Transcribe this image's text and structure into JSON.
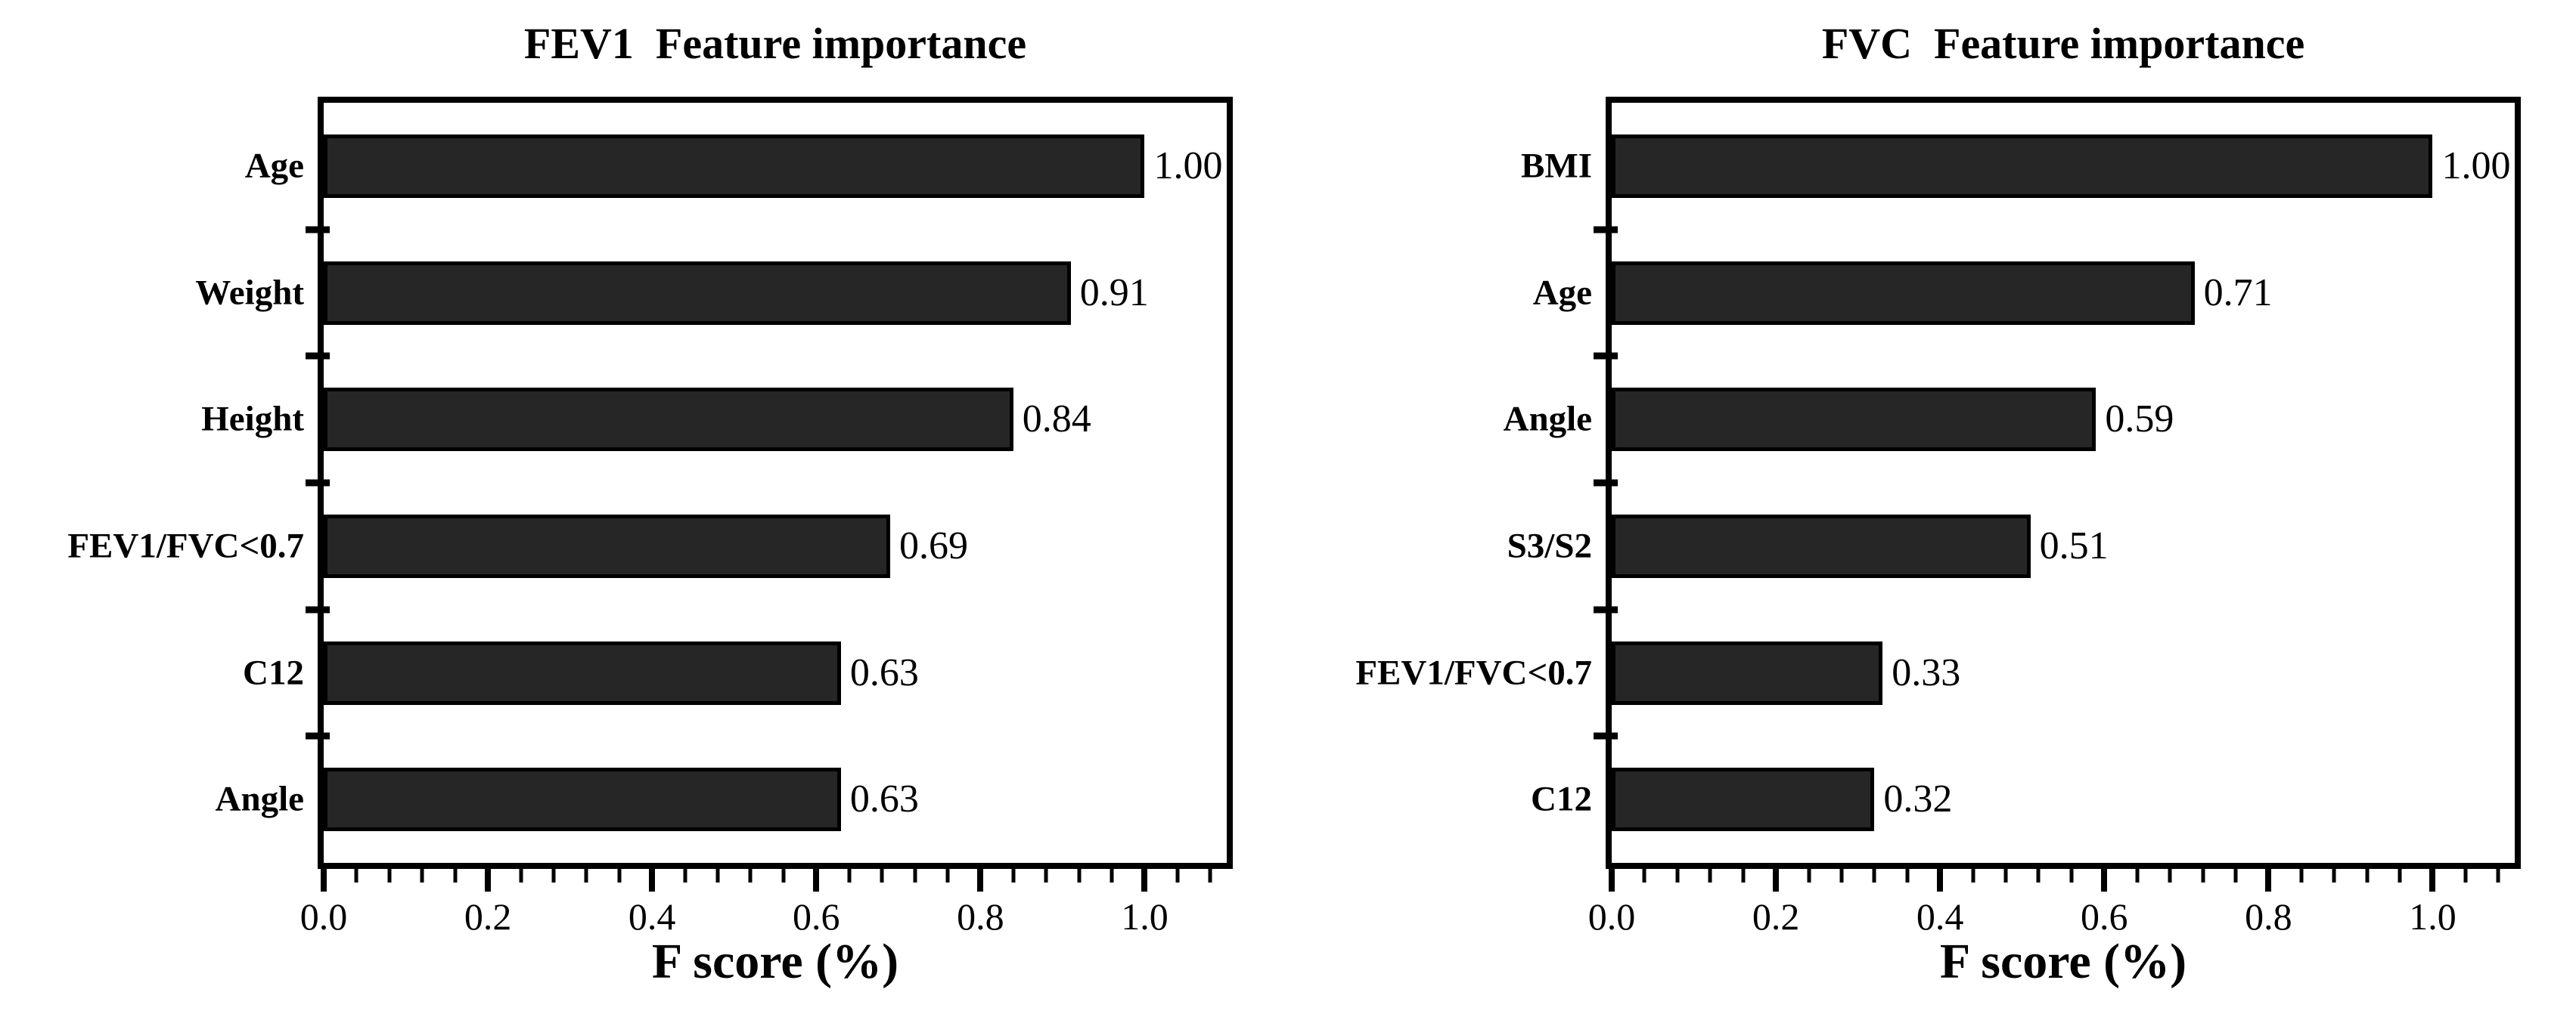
{
  "figure": {
    "background_color": "#ffffff",
    "text_color": "#000000"
  },
  "chart_data": [
    {
      "type": "bar",
      "orientation": "horizontal",
      "title": "FEV1  Feature importance",
      "xlabel": "F score (%)",
      "categories": [
        "Age",
        "Weight",
        "Height",
        "FEV1/FVC<0.7",
        "C12",
        "Angle"
      ],
      "values": [
        1.0,
        0.91,
        0.84,
        0.69,
        0.63,
        0.63
      ],
      "value_labels": [
        "1.00",
        "0.91",
        "0.84",
        "0.69",
        "0.63",
        "0.63"
      ],
      "xlim": [
        0,
        1.1
      ],
      "x_major_ticks": [
        0.0,
        0.2,
        0.4,
        0.6,
        0.8,
        1.0
      ],
      "x_tick_labels": [
        "0.0",
        "0.2",
        "0.4",
        "0.6",
        "0.8",
        "1.0"
      ],
      "x_minor_step": 0.04,
      "grid": false,
      "legend": false,
      "bar_color": "#262626",
      "bar_edge_color": "#000000"
    },
    {
      "type": "bar",
      "orientation": "horizontal",
      "title": "FVC  Feature importance",
      "xlabel": "F score (%)",
      "categories": [
        "BMI",
        "Age",
        "Angle",
        "S3/S2",
        "FEV1/FVC<0.7",
        "C12"
      ],
      "values": [
        1.0,
        0.71,
        0.59,
        0.51,
        0.33,
        0.32
      ],
      "value_labels": [
        "1.00",
        "0.71",
        "0.59",
        "0.51",
        "0.33",
        "0.32"
      ],
      "xlim": [
        0,
        1.1
      ],
      "x_major_ticks": [
        0.0,
        0.2,
        0.4,
        0.6,
        0.8,
        1.0
      ],
      "x_tick_labels": [
        "0.0",
        "0.2",
        "0.4",
        "0.6",
        "0.8",
        "1.0"
      ],
      "x_minor_step": 0.04,
      "grid": false,
      "legend": false,
      "bar_color": "#262626",
      "bar_edge_color": "#000000"
    }
  ]
}
